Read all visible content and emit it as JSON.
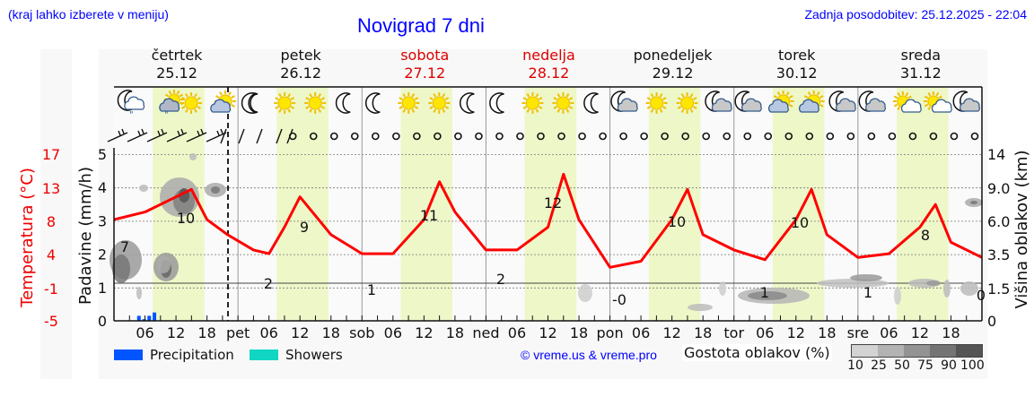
{
  "header": {
    "location_hint": "(kraj lahko izberete v meniju)",
    "title": "Novigrad 7 dni",
    "last_update": "Zadnja posodobitev: 25.12.2025 - 22:04"
  },
  "days": [
    {
      "name": "četrtek",
      "date": "25.12",
      "weekend": false
    },
    {
      "name": "petek",
      "date": "26.12",
      "weekend": false
    },
    {
      "name": "sobota",
      "date": "27.12",
      "weekend": true
    },
    {
      "name": "nedelja",
      "date": "28.12",
      "weekend": true
    },
    {
      "name": "ponedeljek",
      "date": "29.12",
      "weekend": false
    },
    {
      "name": "torek",
      "date": "30.12",
      "weekend": false
    },
    {
      "name": "sreda",
      "date": "31.12",
      "weekend": false
    }
  ],
  "axes": {
    "temperature_label": "Temperatura (°C)",
    "temperature_ticks": [
      "17",
      "13",
      "8",
      "4",
      "-1",
      "-5"
    ],
    "precip_label": "Padavine (mm/h)",
    "precip_ticks": [
      "5",
      "4",
      "3",
      "2",
      "1",
      "0"
    ],
    "cloud_label": "Višina oblakov (km)",
    "cloud_ticks": [
      "14",
      "9.0",
      "6.0",
      "3.5",
      "1.5",
      "0"
    ],
    "x_ticks": [
      "06",
      "12",
      "18",
      "pet",
      "06",
      "12",
      "18",
      "sob",
      "06",
      "12",
      "18",
      "ned",
      "06",
      "12",
      "18",
      "pon",
      "06",
      "12",
      "18",
      "tor",
      "06",
      "12",
      "18",
      "sre",
      "06",
      "12",
      "18"
    ]
  },
  "legend": {
    "precipitation": "Precipitation",
    "showers": "Showers",
    "precipitation_color": "#0055ff",
    "showers_color": "#11d6c4",
    "copyright": "© vreme.us & vreme.pro",
    "cloud_density_label": "Gostota oblakov (%)",
    "cloud_density_scale": [
      "10",
      "25",
      "50",
      "75",
      "90",
      "100"
    ]
  },
  "colors": {
    "temperature_line": "#ff0000",
    "daylight_band": "#eef7c8",
    "title_blue": "#0000ff",
    "weekend_red": "#dd0000"
  },
  "chart_data": {
    "type": "line",
    "title": "Novigrad 7 dni",
    "xlabel": "",
    "ylabel": "Temperatura (°C) / Padavine (mm/h)",
    "y2label": "Višina oblakov (km)",
    "temperature_ylim": [
      -5,
      17
    ],
    "precip_ylim": [
      0,
      5
    ],
    "grid": true,
    "series": [
      {
        "name": "Temperatura (°C)",
        "points_hours": [
          0,
          6,
          12,
          15,
          18,
          22,
          27,
          30,
          33,
          36,
          42,
          48,
          54,
          60,
          63,
          66,
          72,
          78,
          84,
          87,
          90,
          96,
          102,
          108,
          111,
          114,
          120,
          126,
          132,
          135,
          138,
          144,
          150,
          156,
          159,
          162,
          168
        ],
        "values": [
          6,
          7,
          9,
          10,
          6,
          4,
          2,
          1.5,
          5,
          9,
          4,
          1.5,
          1.5,
          6,
          11,
          7,
          2,
          2,
          5,
          12,
          6,
          -0.3,
          0.5,
          6,
          10,
          4,
          2,
          0.7,
          6,
          10,
          4,
          1,
          1.5,
          5,
          8,
          3,
          1
        ]
      }
    ],
    "extreme_labels": [
      {
        "day": "četrtek",
        "min": "7",
        "max": "10"
      },
      {
        "day": "petek",
        "min": "2",
        "max": "9"
      },
      {
        "day": "sobota",
        "min": "1",
        "max": "11"
      },
      {
        "day": "nedelja",
        "min": "2",
        "max": "12"
      },
      {
        "day": "ponedeljek",
        "min": "-0",
        "max": "10"
      },
      {
        "day": "torek",
        "min": "1",
        "max": "10"
      },
      {
        "day": "sreda",
        "min": "1",
        "max": "8"
      },
      {
        "day": "end",
        "min": "0"
      }
    ],
    "precipitation_mm_h": [
      {
        "hour": 5,
        "value": 0.15
      },
      {
        "hour": 6,
        "value": 0.05
      },
      {
        "hour": 7,
        "value": 0.15
      },
      {
        "hour": 8,
        "value": 0.25
      }
    ],
    "weather_icons": [
      "moon-rain-cloud",
      "rain-cloud-sun",
      "sun",
      "sun-cloud",
      "moon",
      "moon",
      "sun",
      "sun",
      "moon",
      "moon",
      "sun",
      "sun",
      "moon",
      "moon",
      "sun",
      "sun",
      "moon",
      "moon-cloud",
      "sun",
      "sun",
      "moon-cloud",
      "moon-cloud",
      "sun-cloud",
      "sun-cloud",
      "moon-cloud",
      "moon-cloud",
      "sun-small-cloud",
      "sun-small-cloud",
      "moon-cloud"
    ]
  }
}
